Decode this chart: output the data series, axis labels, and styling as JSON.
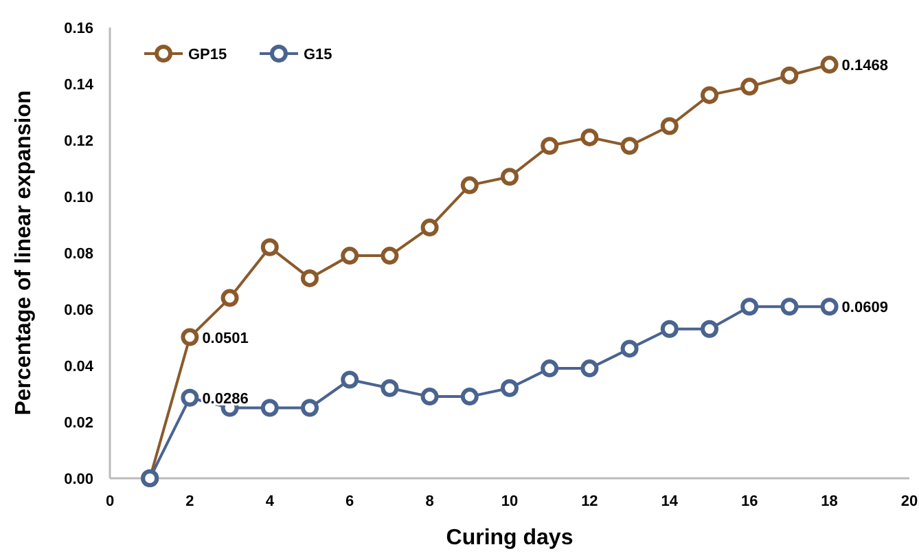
{
  "chart_data": {
    "type": "line",
    "xlabel": "Curing days",
    "ylabel": "Percentage of linear expansion",
    "x": [
      1,
      2,
      3,
      4,
      5,
      6,
      7,
      8,
      9,
      10,
      11,
      12,
      13,
      14,
      15,
      16,
      17,
      18
    ],
    "series": [
      {
        "name": "GP15",
        "color": "#8b5a2b",
        "values": [
          0,
          0.0501,
          0.064,
          0.082,
          0.071,
          0.079,
          0.079,
          0.089,
          0.104,
          0.107,
          0.118,
          0.121,
          0.118,
          0.125,
          0.136,
          0.139,
          0.143,
          0.1468
        ],
        "value_labels": [
          null,
          "0.0501",
          null,
          null,
          null,
          null,
          null,
          null,
          null,
          null,
          null,
          null,
          null,
          null,
          null,
          null,
          null,
          "0.1468"
        ]
      },
      {
        "name": "G15",
        "color": "#4a6490",
        "values": [
          0,
          0.0286,
          0.025,
          0.025,
          0.025,
          0.035,
          0.032,
          0.029,
          0.029,
          0.032,
          0.039,
          0.039,
          0.046,
          0.053,
          0.053,
          0.0609,
          0.0609,
          0.0609
        ],
        "value_labels": [
          null,
          "0.0286",
          null,
          null,
          null,
          null,
          null,
          null,
          null,
          null,
          null,
          null,
          null,
          null,
          null,
          null,
          null,
          "0.0609"
        ]
      }
    ],
    "xlim": [
      0,
      20
    ],
    "xticks": [
      0,
      2,
      4,
      6,
      8,
      10,
      12,
      14,
      16,
      18,
      20
    ],
    "ylim": [
      0,
      0.16
    ],
    "yticks": [
      {
        "value": 0,
        "label": "0.00"
      },
      {
        "value": 0.02,
        "label": "0.02"
      },
      {
        "value": 0.04,
        "label": "0.04"
      },
      {
        "value": 0.06,
        "label": "0.06"
      },
      {
        "value": 0.08,
        "label": "0.08"
      },
      {
        "value": 0.1,
        "label": "0.10"
      },
      {
        "value": 0.12,
        "label": "0.12"
      },
      {
        "value": 0.14,
        "label": "0.14"
      },
      {
        "value": 0.16,
        "label": "0.16"
      }
    ],
    "grid": false,
    "legend": "top left",
    "marker": "circle",
    "line_style": "solid"
  }
}
